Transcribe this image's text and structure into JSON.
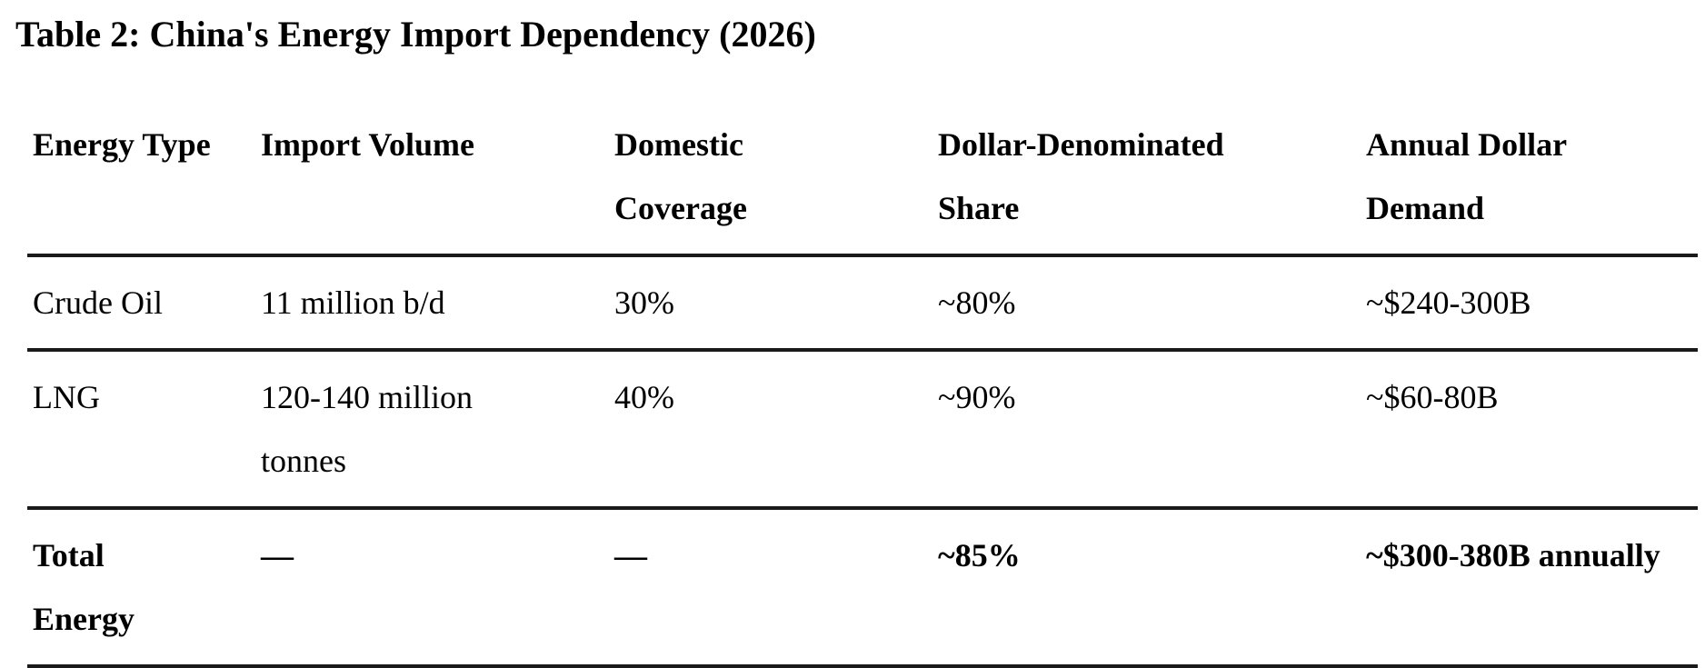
{
  "title": "Table 2: China's Energy Import Dependency (2026)",
  "colors": {
    "background": "#ffffff",
    "text": "#000000",
    "rule": "#1a1a1a"
  },
  "table": {
    "headers": [
      {
        "id": "energy-type",
        "lines": [
          "Energy Type"
        ]
      },
      {
        "id": "import-volume",
        "lines": [
          "Import Volume"
        ]
      },
      {
        "id": "domestic-coverage",
        "lines": [
          "Domestic",
          "Coverage"
        ]
      },
      {
        "id": "dollar-denominated-share",
        "lines": [
          "Dollar-Denominated",
          "Share"
        ]
      },
      {
        "id": "annual-dollar-demand",
        "lines": [
          "Annual Dollar",
          "Demand"
        ]
      }
    ],
    "rows": [
      {
        "id": "crude-oil",
        "bold": false,
        "cells": [
          {
            "lines": [
              "Crude Oil"
            ]
          },
          {
            "lines": [
              "11 million b/d"
            ]
          },
          {
            "lines": [
              "30%"
            ]
          },
          {
            "lines": [
              "~80%"
            ]
          },
          {
            "lines": [
              "~$240-300B"
            ]
          }
        ]
      },
      {
        "id": "lng",
        "bold": false,
        "cells": [
          {
            "lines": [
              "LNG"
            ]
          },
          {
            "lines": [
              "120-140 million",
              "tonnes"
            ]
          },
          {
            "lines": [
              "40%"
            ]
          },
          {
            "lines": [
              "~90%"
            ]
          },
          {
            "lines": [
              "~$60-80B"
            ]
          }
        ]
      },
      {
        "id": "total-energy",
        "bold": true,
        "cells": [
          {
            "lines": [
              "Total",
              "Energy"
            ]
          },
          {
            "lines": [
              "—"
            ]
          },
          {
            "lines": [
              "—"
            ]
          },
          {
            "lines": [
              "~85%"
            ]
          },
          {
            "lines": [
              "~$300-380B annually"
            ]
          }
        ]
      }
    ]
  }
}
